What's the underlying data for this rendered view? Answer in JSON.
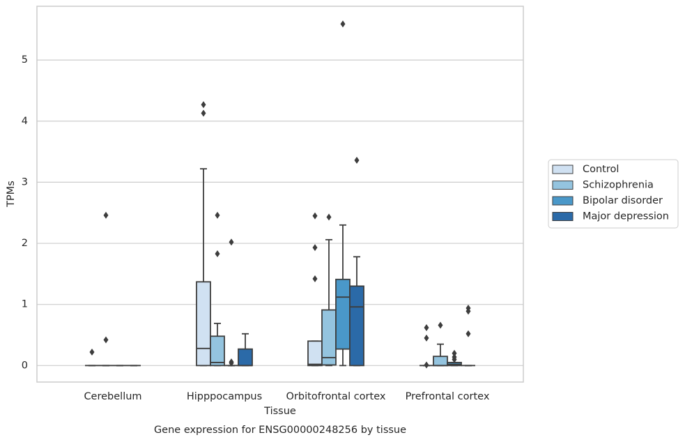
{
  "chart_data": {
    "type": "box",
    "title": "Gene expression for ENSG00000248256 by tissue",
    "x_label": "Tissue",
    "y_label": "TPMs",
    "categories": [
      "Cerebellum",
      "Hipppocampus",
      "Orbitofrontal cortex",
      "Prefrontal cortex"
    ],
    "ylim": [
      -0.27,
      5.88
    ],
    "yticks": [
      0,
      1,
      2,
      3,
      4,
      5
    ],
    "grid": true,
    "legend": "right",
    "series": [
      {
        "name": "Control",
        "color": "#d0e1f2",
        "values": [
          {
            "low": 0,
            "q1": 0,
            "median": 0,
            "q3": 0,
            "high": 0,
            "outliers": [
              0.22
            ]
          },
          {
            "low": 0,
            "q1": 0,
            "median": 0.28,
            "q3": 1.37,
            "high": 3.22,
            "outliers": [
              4.13,
              4.27
            ]
          },
          {
            "low": 0,
            "q1": 0,
            "median": 0.02,
            "q3": 0.4,
            "high": 0.4,
            "outliers": [
              2.45,
              1.93,
              1.42
            ]
          },
          {
            "low": 0,
            "q1": 0,
            "median": 0,
            "q3": 0,
            "high": 0,
            "outliers": [
              0.62,
              0.45,
              0.01
            ]
          }
        ]
      },
      {
        "name": "Schizophrenia",
        "color": "#94c4df",
        "values": [
          {
            "low": 0,
            "q1": 0,
            "median": 0,
            "q3": 0,
            "high": 0,
            "outliers": [
              2.46,
              0.42
            ]
          },
          {
            "low": 0,
            "q1": 0,
            "median": 0.05,
            "q3": 0.48,
            "high": 0.69,
            "outliers": [
              2.46,
              1.83
            ]
          },
          {
            "low": 0,
            "q1": 0.01,
            "median": 0.13,
            "q3": 0.91,
            "high": 2.06,
            "outliers": [
              2.43
            ]
          },
          {
            "low": 0,
            "q1": 0,
            "median": 0,
            "q3": 0.15,
            "high": 0.35,
            "outliers": [
              0.66
            ]
          }
        ]
      },
      {
        "name": "Bipolar disorder",
        "color": "#4a98c9",
        "values": [
          {
            "low": 0,
            "q1": 0,
            "median": 0,
            "q3": 0,
            "high": 0,
            "outliers": []
          },
          {
            "low": 0,
            "q1": 0,
            "median": 0,
            "q3": 0,
            "high": 0,
            "outliers": [
              2.02,
              0.06,
              0.04
            ]
          },
          {
            "low": 0,
            "q1": 0.27,
            "median": 1.12,
            "q3": 1.41,
            "high": 2.3,
            "outliers": [
              5.59
            ]
          },
          {
            "low": 0,
            "q1": 0,
            "median": 0.02,
            "q3": 0.05,
            "high": 0.05,
            "outliers": [
              0.2,
              0.14,
              0.1
            ]
          }
        ]
      },
      {
        "name": "Major depression",
        "color": "#2b6aa8",
        "values": [
          {
            "low": 0,
            "q1": 0,
            "median": 0,
            "q3": 0,
            "high": 0,
            "outliers": []
          },
          {
            "low": 0,
            "q1": 0,
            "median": 0,
            "q3": 0.27,
            "high": 0.52,
            "outliers": []
          },
          {
            "low": 0,
            "q1": 0,
            "median": 0.96,
            "q3": 1.3,
            "high": 1.78,
            "outliers": [
              3.36
            ]
          },
          {
            "low": 0,
            "q1": 0,
            "median": 0,
            "q3": 0,
            "high": 0,
            "outliers": [
              0.94,
              0.89,
              0.52
            ]
          }
        ]
      }
    ]
  }
}
